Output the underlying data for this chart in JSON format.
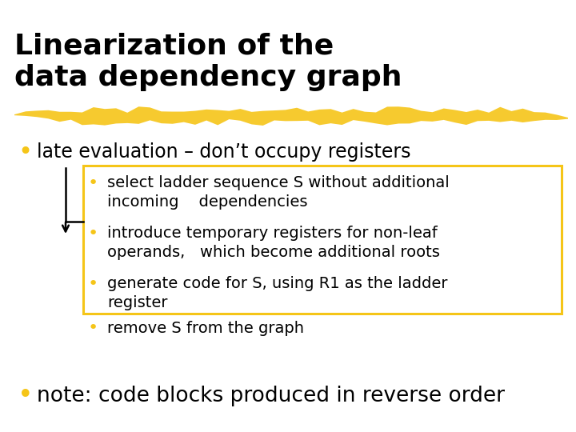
{
  "title_line1": "Linearization of the",
  "title_line2": "data dependency graph",
  "title_fontsize": 26,
  "title_color": "#000000",
  "highlight_color": "#F5C518",
  "bullet_color": "#000000",
  "yellow_dot_color": "#F5C518",
  "bullet1_text": "late evaluation – don’t occupy registers",
  "bullet1_fontsize": 17,
  "sub_bullet_color": "#F5C518",
  "sub_bullets": [
    "select ladder sequence S without additional\nincoming    dependencies",
    "introduce temporary registers for non-leaf\noperands,   which become additional roots",
    "generate code for S, using R1 as the ladder\nregister"
  ],
  "sub_bullet_fontsize": 14,
  "remove_bullet_text": "remove S from the graph",
  "note_bullet_text": "note: code blocks produced in reverse order",
  "note_bullet_fontsize": 19,
  "background_color": "#ffffff"
}
